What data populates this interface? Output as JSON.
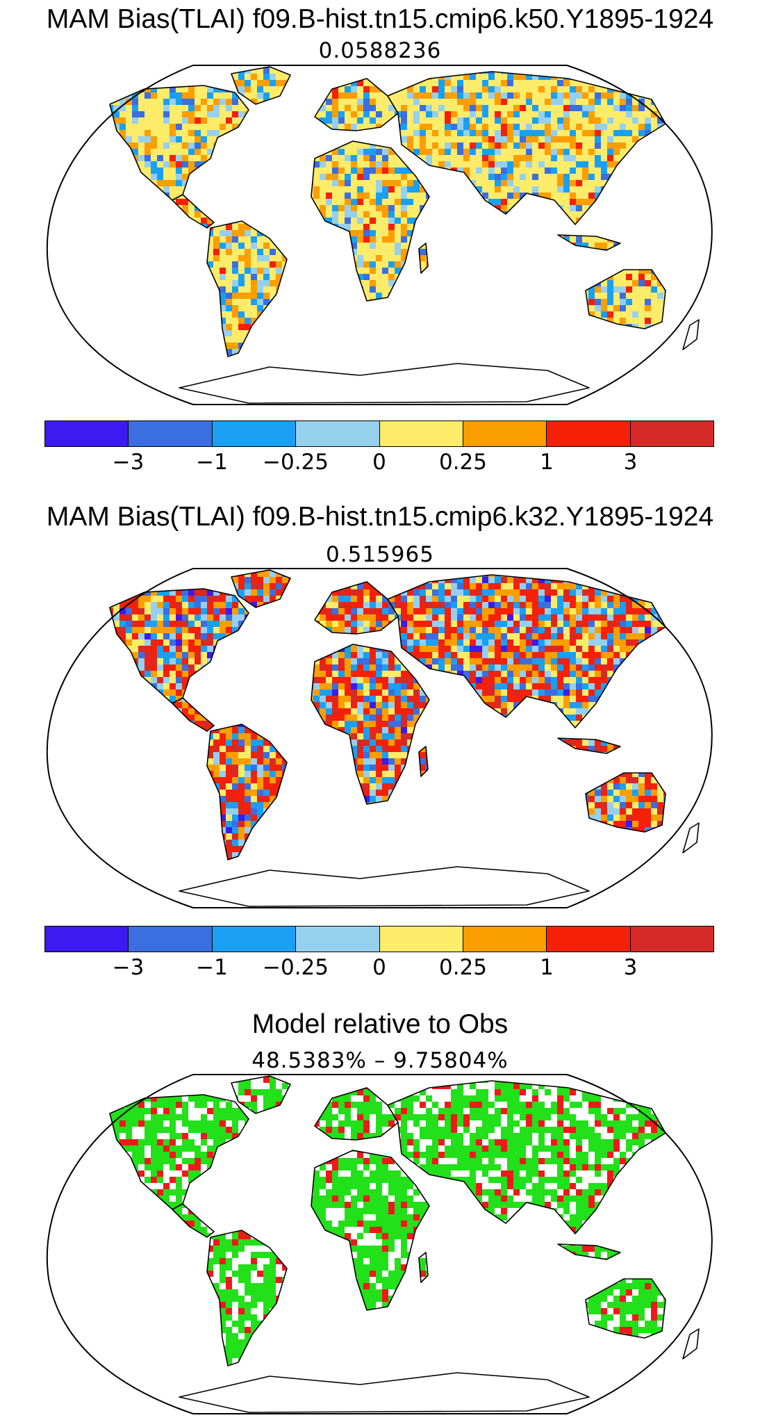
{
  "panels": [
    {
      "title": "MAM Bias(TLAI) f09.B-hist.tn15.cmip6.k50.Y1895-1924",
      "subtitle": "0.0588236"
    },
    {
      "title": "MAM Bias(TLAI) f09.B-hist.tn15.cmip6.k32.Y1895-1924",
      "subtitle": "0.515965"
    },
    {
      "title": "Model relative to Obs",
      "subtitle": "48.5383% – 9.75804%"
    }
  ],
  "colorbar": {
    "colors": [
      "#3d1af0",
      "#3b6ee0",
      "#1aa0f2",
      "#96d0ef",
      "#fdec6a",
      "#fb9e00",
      "#f42008",
      "#d62a28"
    ],
    "labels": [
      "−3",
      "−1",
      "−0.25",
      "0",
      "0.25",
      "1",
      "3"
    ]
  },
  "legend_colors": {
    "land_green": "#22e01a",
    "land_red": "#ee1a1a",
    "land_white": "#ffffff"
  }
}
